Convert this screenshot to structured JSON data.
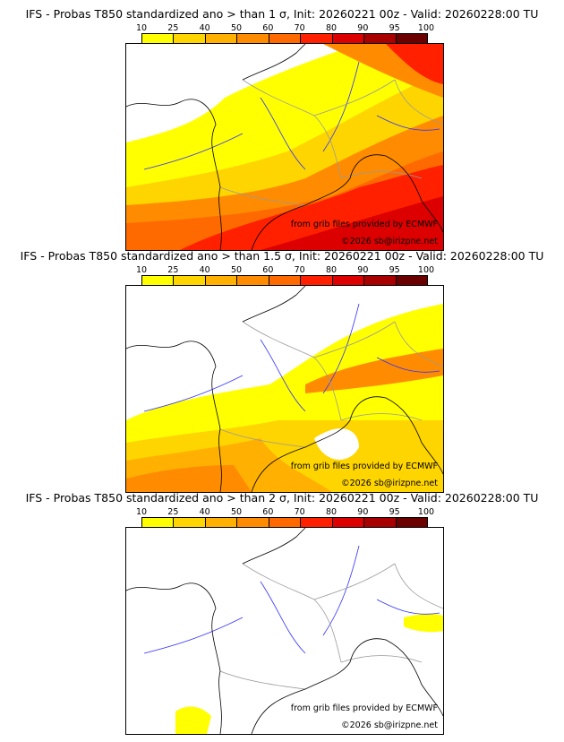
{
  "colorbar": {
    "ticks": [
      "10",
      "25",
      "40",
      "50",
      "60",
      "70",
      "80",
      "90",
      "95",
      "100"
    ],
    "colors": [
      "#ffff00",
      "#ffd500",
      "#ffb000",
      "#ff8c00",
      "#ff6a00",
      "#ff2000",
      "#dd0000",
      "#a80000",
      "#6a0000"
    ]
  },
  "panels": [
    {
      "title": "IFS - Probas T850  standardized ano > than 1 σ, Init: 20260221 00z - Valid: 20260228:00 TU",
      "level": 3
    },
    {
      "title": "IFS - Probas T850  standardized ano > than 1.5 σ, Init: 20260221 00z - Valid: 20260228:00 TU",
      "level": 2
    },
    {
      "title": "IFS - Probas T850  standardized ano > than 2 σ, Init: 20260221 00z - Valid: 20260228:00 TU",
      "level": 1
    }
  ],
  "credit": {
    "source": "from grib files provided by ECMWF",
    "copyright": "©2026 sb@irizpne.net"
  }
}
